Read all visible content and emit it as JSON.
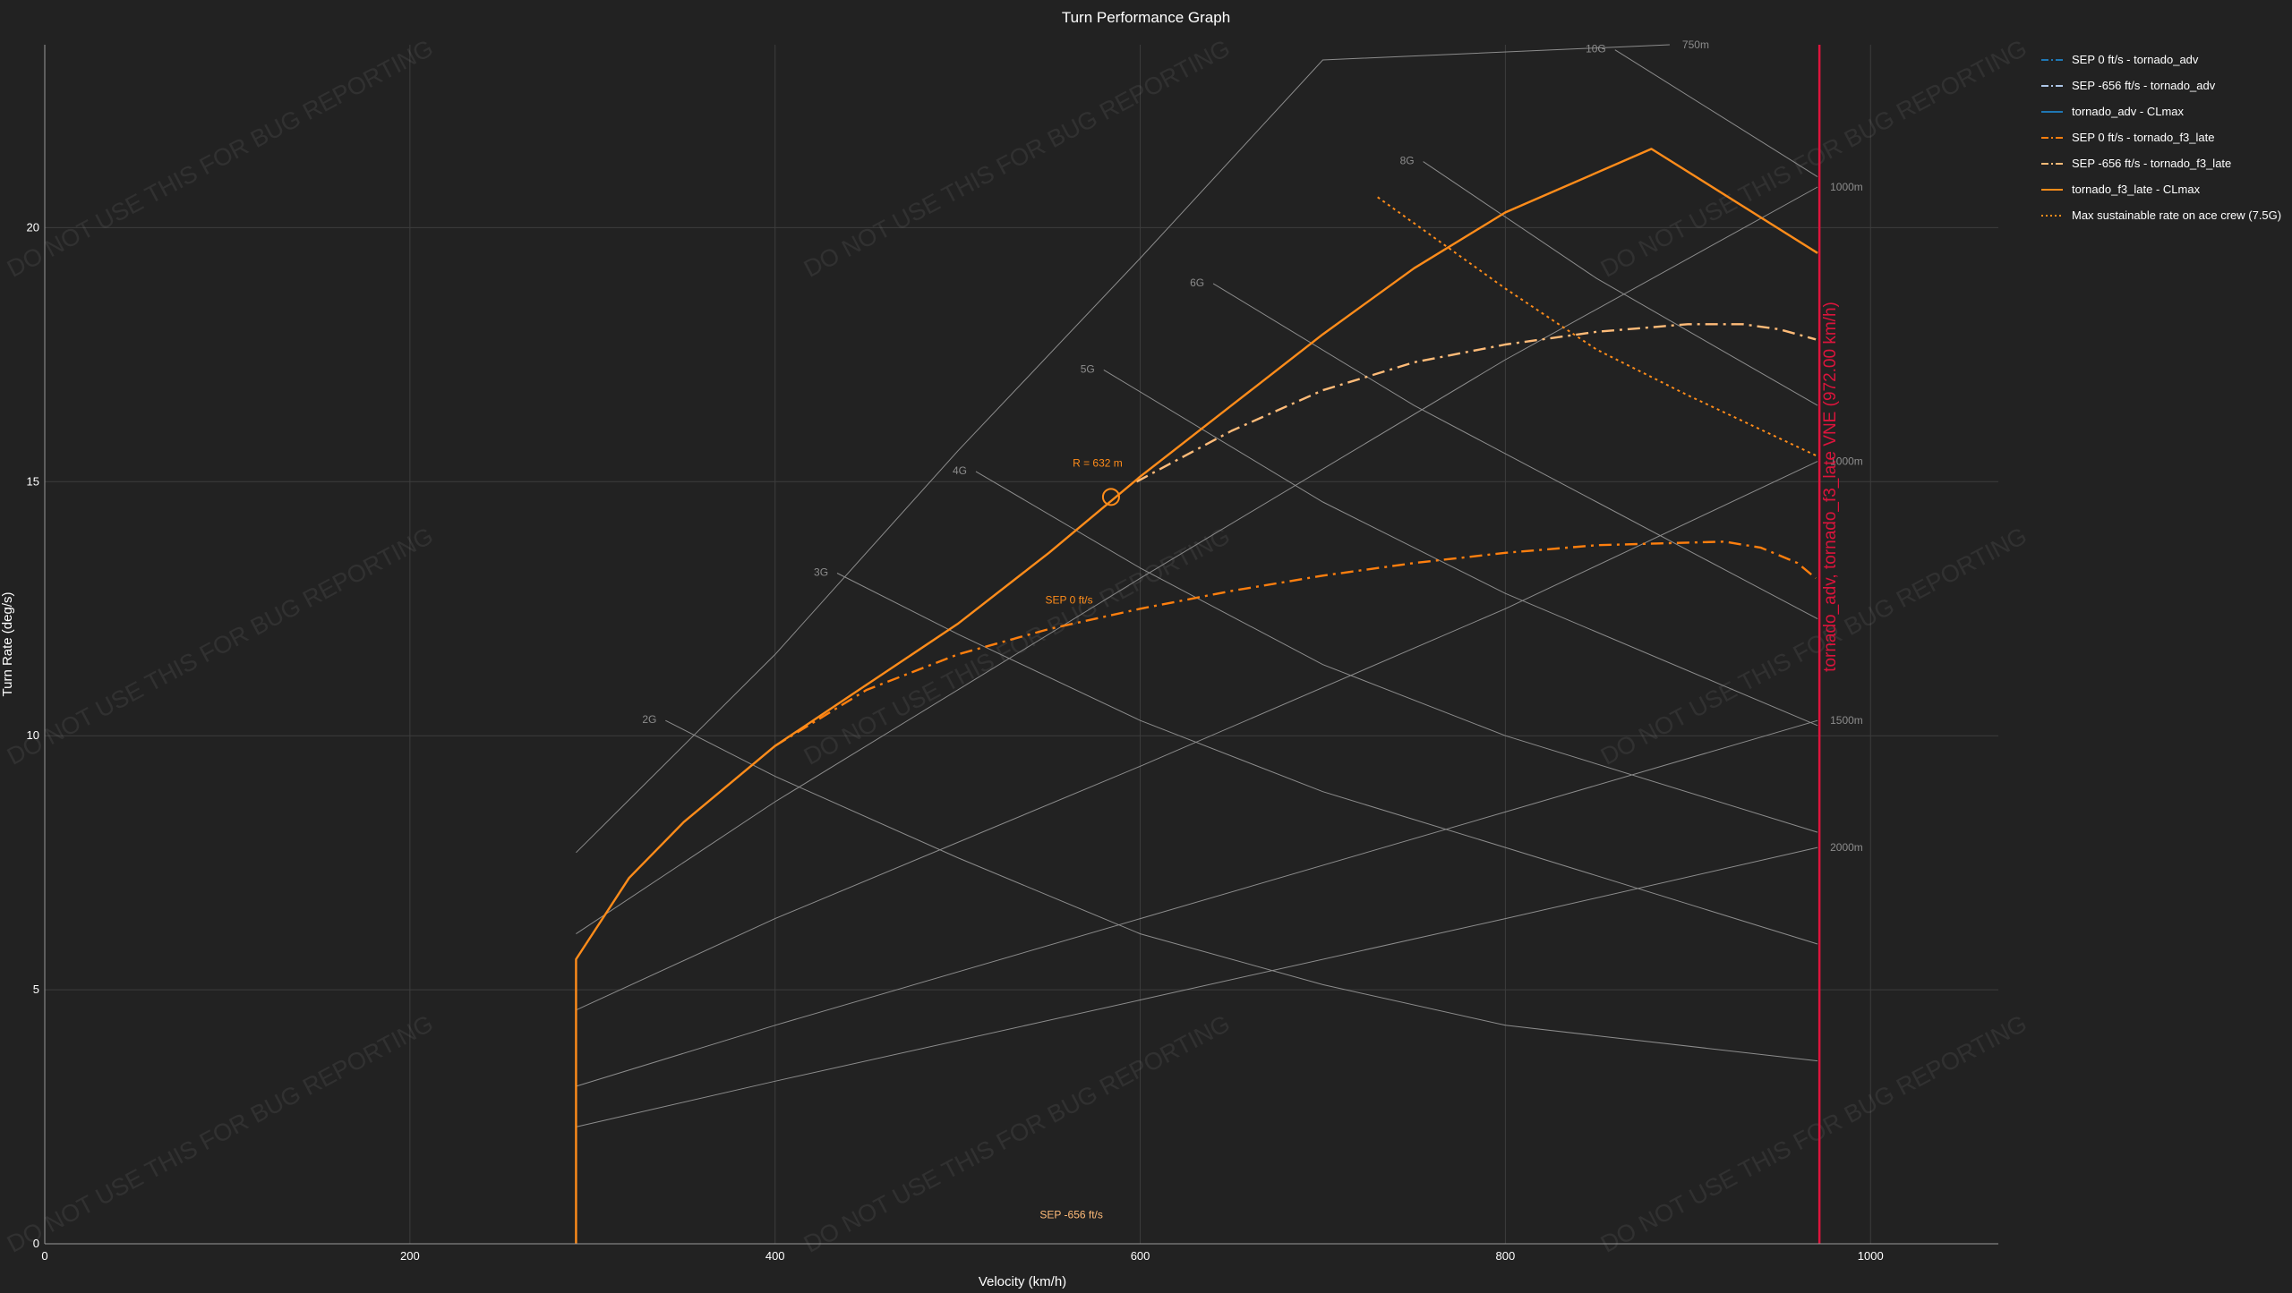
{
  "chart_data": {
    "type": "line",
    "title": "Turn Performance Graph",
    "xlabel": "Velocity (km/h)",
    "ylabel": "Turn Rate (deg/s)",
    "xlim": [
      0,
      1070
    ],
    "ylim": [
      0,
      23.6
    ],
    "x_ticks": [
      0,
      200,
      400,
      600,
      800,
      1000
    ],
    "y_ticks": [
      0,
      5,
      10,
      15,
      20
    ],
    "grid": true,
    "legend_position": "top-right",
    "watermark": "DO NOT USE THIS FOR BUG REPORTING",
    "series": [
      {
        "name": "SEP 0 ft/s - tornado_adv",
        "color": "#1f77b4",
        "dash": "dashdot",
        "points": []
      },
      {
        "name": "SEP -656 ft/s - tornado_adv",
        "color": "#aec7e8",
        "dash": "dashdot",
        "points": []
      },
      {
        "name": "tornado_adv - CLmax",
        "color": "#1f77b4",
        "dash": "solid",
        "points": []
      },
      {
        "name": "SEP 0 ft/s - tornado_f3_late",
        "color": "#ff7f0e",
        "dash": "dashdot",
        "points": [
          [
            400,
            9.8
          ],
          [
            450,
            10.9
          ],
          [
            500,
            11.6
          ],
          [
            550,
            12.1
          ],
          [
            600,
            12.5
          ],
          [
            650,
            12.85
          ],
          [
            700,
            13.15
          ],
          [
            750,
            13.4
          ],
          [
            800,
            13.6
          ],
          [
            850,
            13.75
          ],
          [
            900,
            13.8
          ],
          [
            920,
            13.82
          ],
          [
            940,
            13.7
          ],
          [
            960,
            13.4
          ],
          [
            970,
            13.1
          ]
        ]
      },
      {
        "name": "SEP -656 ft/s - tornado_f3_late",
        "color": "#ffbb78",
        "dash": "dashdot",
        "points": [
          [
            598,
            15.0
          ],
          [
            650,
            16.0
          ],
          [
            700,
            16.8
          ],
          [
            750,
            17.35
          ],
          [
            800,
            17.7
          ],
          [
            850,
            17.95
          ],
          [
            900,
            18.1
          ],
          [
            930,
            18.1
          ],
          [
            950,
            18.0
          ],
          [
            970,
            17.8
          ]
        ]
      },
      {
        "name": "tornado_f3_late - CLmax",
        "color": "#ff8c1a",
        "dash": "solid",
        "points": [
          [
            291,
            0
          ],
          [
            291,
            5.6
          ],
          [
            320,
            7.2
          ],
          [
            350,
            8.3
          ],
          [
            400,
            9.8
          ],
          [
            450,
            11.0
          ],
          [
            500,
            12.2
          ],
          [
            550,
            13.6
          ],
          [
            600,
            15.1
          ],
          [
            650,
            16.5
          ],
          [
            700,
            17.9
          ],
          [
            750,
            19.2
          ],
          [
            800,
            20.3
          ],
          [
            880,
            21.55
          ],
          [
            971,
            19.5
          ]
        ]
      },
      {
        "name": "Max sustainable rate on ace crew (7.5G)",
        "color": "#ff8c1a",
        "dash": "dotted",
        "points": [
          [
            730,
            20.6
          ],
          [
            800,
            18.8
          ],
          [
            850,
            17.6
          ],
          [
            900,
            16.7
          ],
          [
            971,
            15.5
          ]
        ]
      }
    ],
    "g_lines": [
      {
        "label": "2G",
        "points": [
          [
            340,
            10.3
          ],
          [
            400,
            9.2
          ],
          [
            500,
            7.6
          ],
          [
            600,
            6.1
          ],
          [
            700,
            5.1
          ],
          [
            800,
            4.3
          ],
          [
            971,
            3.6
          ]
        ]
      },
      {
        "label": "3G",
        "points": [
          [
            434,
            13.2
          ],
          [
            500,
            12.0
          ],
          [
            600,
            10.3
          ],
          [
            700,
            8.9
          ],
          [
            800,
            7.8
          ],
          [
            971,
            5.9
          ]
        ]
      },
      {
        "label": "4G",
        "points": [
          [
            510,
            15.2
          ],
          [
            600,
            13.3
          ],
          [
            700,
            11.4
          ],
          [
            800,
            10.0
          ],
          [
            971,
            8.1
          ]
        ]
      },
      {
        "label": "5G",
        "points": [
          [
            580,
            17.2
          ],
          [
            700,
            14.6
          ],
          [
            800,
            12.8
          ],
          [
            971,
            10.2
          ]
        ]
      },
      {
        "label": "6G",
        "points": [
          [
            640,
            18.9
          ],
          [
            750,
            16.5
          ],
          [
            850,
            14.6
          ],
          [
            971,
            12.3
          ]
        ]
      },
      {
        "label": "8G",
        "points": [
          [
            755,
            21.3
          ],
          [
            850,
            19.0
          ],
          [
            971,
            16.5
          ]
        ]
      },
      {
        "label": "10G",
        "points": [
          [
            860,
            23.5
          ],
          [
            971,
            21.0
          ]
        ]
      }
    ],
    "radius_lines": [
      {
        "label": "750m",
        "points": [
          [
            291,
            7.7
          ],
          [
            400,
            11.6
          ],
          [
            500,
            15.6
          ],
          [
            600,
            19.4
          ],
          [
            700,
            23.3
          ],
          [
            890,
            23.6
          ]
        ]
      },
      {
        "label": "1000m",
        "points": [
          [
            291,
            6.1
          ],
          [
            400,
            8.7
          ],
          [
            600,
            13.1
          ],
          [
            800,
            17.4
          ],
          [
            971,
            20.8
          ]
        ]
      },
      {
        "label": "1000m",
        "points": [
          [
            291,
            4.6
          ],
          [
            400,
            6.4
          ],
          [
            600,
            9.4
          ],
          [
            800,
            12.5
          ],
          [
            971,
            15.4
          ]
        ]
      },
      {
        "label": "1500m",
        "points": [
          [
            291,
            3.1
          ],
          [
            400,
            4.3
          ],
          [
            600,
            6.4
          ],
          [
            800,
            8.5
          ],
          [
            971,
            10.3
          ]
        ]
      },
      {
        "label": "2000m",
        "points": [
          [
            291,
            2.3
          ],
          [
            400,
            3.2
          ],
          [
            600,
            4.8
          ],
          [
            800,
            6.4
          ],
          [
            971,
            7.8
          ]
        ]
      }
    ],
    "radius_label_values": [
      750,
      1000,
      1000,
      1500,
      2000
    ],
    "vne_line": {
      "x": 972,
      "label": "tornado_adv, tornado_f3_late VNE (972.00 km/h)",
      "color": "#dc143c"
    },
    "annotations": [
      {
        "text": "R = 632 m",
        "x": 563,
        "y": 15.3,
        "color": "#ff8c1a"
      },
      {
        "text": "SEP 0 ft/s",
        "x": 548,
        "y": 12.6,
        "color": "#ff8c1a"
      },
      {
        "text": "SEP -656 ft/s",
        "x": 545,
        "y": 0.5,
        "color": "#ffbb78"
      }
    ],
    "marker": {
      "x": 584,
      "y": 14.7,
      "color": "#ff8c1a"
    }
  }
}
